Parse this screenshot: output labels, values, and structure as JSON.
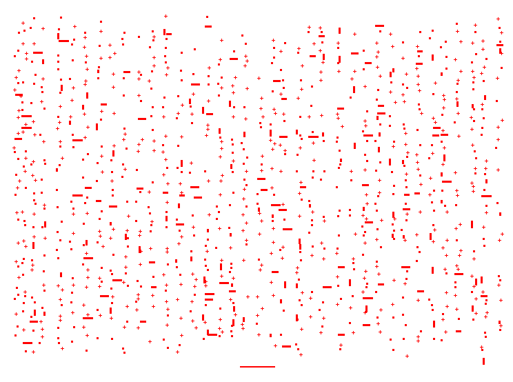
{
  "pattern": {
    "mark_color": "#ff0000",
    "background_color": "#ffffff"
  }
}
